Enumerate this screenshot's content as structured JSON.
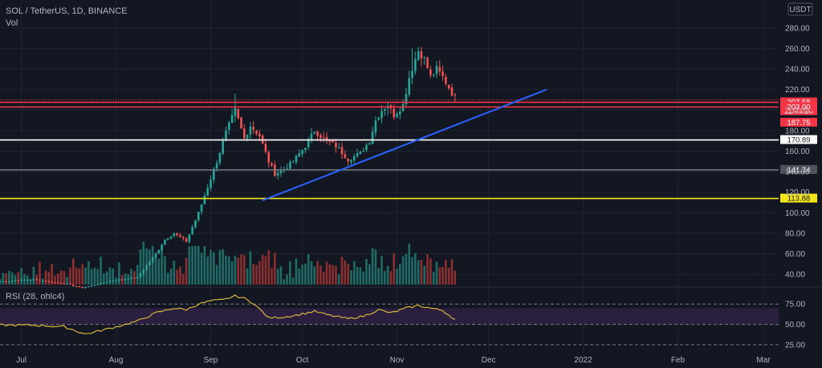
{
  "header": {
    "title": "SOL / TetherUS, 1D, BINANCE",
    "vol_label": "Vol"
  },
  "colors": {
    "background": "#131722",
    "grid": "#1f2433",
    "up": "#26a69a",
    "down": "#ef5350",
    "red_line": "#f23645",
    "white_line": "#ffffff",
    "gray_line": "#787b86",
    "yellow_line": "#f5e51b",
    "trend_line": "#2962ff",
    "rsi_line": "#d8b63b",
    "rsi_band": "#2b1f3f",
    "text": "#b2b5be",
    "vol_up": "#1f6b66",
    "vol_down": "#8b2f30"
  },
  "chart_data": [
    {
      "type": "candlestick",
      "title": "SOL / TetherUS, 1D, BINANCE",
      "currency_label": "USDT",
      "y_ticks": [
        40,
        60,
        80,
        100,
        120,
        140,
        160,
        180,
        200,
        220,
        240,
        260,
        280
      ],
      "ylim": [
        30,
        290
      ],
      "x_ticks": [
        {
          "date": "2021-07-01",
          "label": "Jul"
        },
        {
          "date": "2021-08-01",
          "label": "Aug"
        },
        {
          "date": "2021-09-01",
          "label": "Sep"
        },
        {
          "date": "2021-10-01",
          "label": "Oct"
        },
        {
          "date": "2021-11-01",
          "label": "Nov"
        },
        {
          "date": "2021-12-01",
          "label": "Dec"
        },
        {
          "date": "2022-01-01",
          "label": "2022"
        },
        {
          "date": "2022-02-01",
          "label": "Feb"
        },
        {
          "date": "2022-03-01",
          "label": "Mar"
        }
      ],
      "xlim": [
        "2021-06-24",
        "2022-03-06"
      ],
      "close_keyframes": [
        [
          "2021-06-24",
          33
        ],
        [
          "2021-07-05",
          35
        ],
        [
          "2021-07-15",
          31
        ],
        [
          "2021-07-21",
          27
        ],
        [
          "2021-07-31",
          34
        ],
        [
          "2021-08-08",
          37
        ],
        [
          "2021-08-14",
          60
        ],
        [
          "2021-08-17",
          74
        ],
        [
          "2021-08-20",
          80
        ],
        [
          "2021-08-24",
          72
        ],
        [
          "2021-08-28",
          100
        ],
        [
          "2021-08-31",
          125
        ],
        [
          "2021-09-03",
          150
        ],
        [
          "2021-09-06",
          178
        ],
        [
          "2021-09-09",
          200
        ],
        [
          "2021-09-12",
          172
        ],
        [
          "2021-09-14",
          185
        ],
        [
          "2021-09-17",
          175
        ],
        [
          "2021-09-20",
          150
        ],
        [
          "2021-09-22",
          138
        ],
        [
          "2021-09-25",
          142
        ],
        [
          "2021-09-28",
          150
        ],
        [
          "2021-10-02",
          165
        ],
        [
          "2021-10-05",
          180
        ],
        [
          "2021-10-08",
          172
        ],
        [
          "2021-10-12",
          165
        ],
        [
          "2021-10-16",
          152
        ],
        [
          "2021-10-20",
          158
        ],
        [
          "2021-10-23",
          170
        ],
        [
          "2021-10-25",
          190
        ],
        [
          "2021-10-27",
          200
        ],
        [
          "2021-10-29",
          205
        ],
        [
          "2021-10-31",
          195
        ],
        [
          "2021-11-03",
          205
        ],
        [
          "2021-11-05",
          232
        ],
        [
          "2021-11-07",
          250
        ],
        [
          "2021-11-08",
          258
        ],
        [
          "2021-11-10",
          250
        ],
        [
          "2021-11-12",
          232
        ],
        [
          "2021-11-14",
          240
        ],
        [
          "2021-11-16",
          232
        ],
        [
          "2021-11-18",
          222
        ],
        [
          "2021-11-20",
          212
        ]
      ],
      "extreme_high": {
        "date": "2021-09-09",
        "value": 216
      },
      "ath_high": {
        "date": "2021-11-06",
        "value": 260
      },
      "horizontal_levels": [
        {
          "value": 207.58,
          "color": "red",
          "label": "207.58",
          "sublabel": "11:49:20"
        },
        {
          "value": 203.0,
          "color": "red",
          "label": "203.00"
        },
        {
          "value": 187.75,
          "color": "red",
          "label": "187.75"
        },
        {
          "value": 170.89,
          "color": "white",
          "label": "170.89"
        },
        {
          "value": 141.74,
          "color": "gray",
          "label": "141.74"
        },
        {
          "value": 113.88,
          "color": "yellow",
          "label": "113.88"
        }
      ],
      "trendline": {
        "from": [
          "2021-09-18",
          112
        ],
        "to": [
          "2021-12-20",
          220
        ]
      }
    },
    {
      "type": "line",
      "name": "RSI (28, ohlc4)",
      "label": "RSI (28, ohlc4)",
      "y_ticks": [
        25,
        50,
        75
      ],
      "band": [
        50,
        70
      ],
      "ylim": [
        18,
        92
      ],
      "keyframes": [
        [
          "2021-06-24",
          49
        ],
        [
          "2021-07-05",
          49
        ],
        [
          "2021-07-15",
          47
        ],
        [
          "2021-07-22",
          38
        ],
        [
          "2021-07-31",
          46
        ],
        [
          "2021-08-08",
          54
        ],
        [
          "2021-08-14",
          64
        ],
        [
          "2021-08-20",
          70
        ],
        [
          "2021-08-24",
          68
        ],
        [
          "2021-08-28",
          75
        ],
        [
          "2021-09-01",
          79
        ],
        [
          "2021-09-05",
          80
        ],
        [
          "2021-09-09",
          85
        ],
        [
          "2021-09-12",
          82
        ],
        [
          "2021-09-15",
          76
        ],
        [
          "2021-09-20",
          58
        ],
        [
          "2021-09-25",
          59
        ],
        [
          "2021-09-30",
          62
        ],
        [
          "2021-10-05",
          66
        ],
        [
          "2021-10-10",
          61
        ],
        [
          "2021-10-16",
          57
        ],
        [
          "2021-10-21",
          60
        ],
        [
          "2021-10-26",
          68
        ],
        [
          "2021-10-30",
          64
        ],
        [
          "2021-11-04",
          70
        ],
        [
          "2021-11-08",
          73
        ],
        [
          "2021-11-12",
          70
        ],
        [
          "2021-11-16",
          67
        ],
        [
          "2021-11-20",
          56
        ]
      ]
    }
  ]
}
